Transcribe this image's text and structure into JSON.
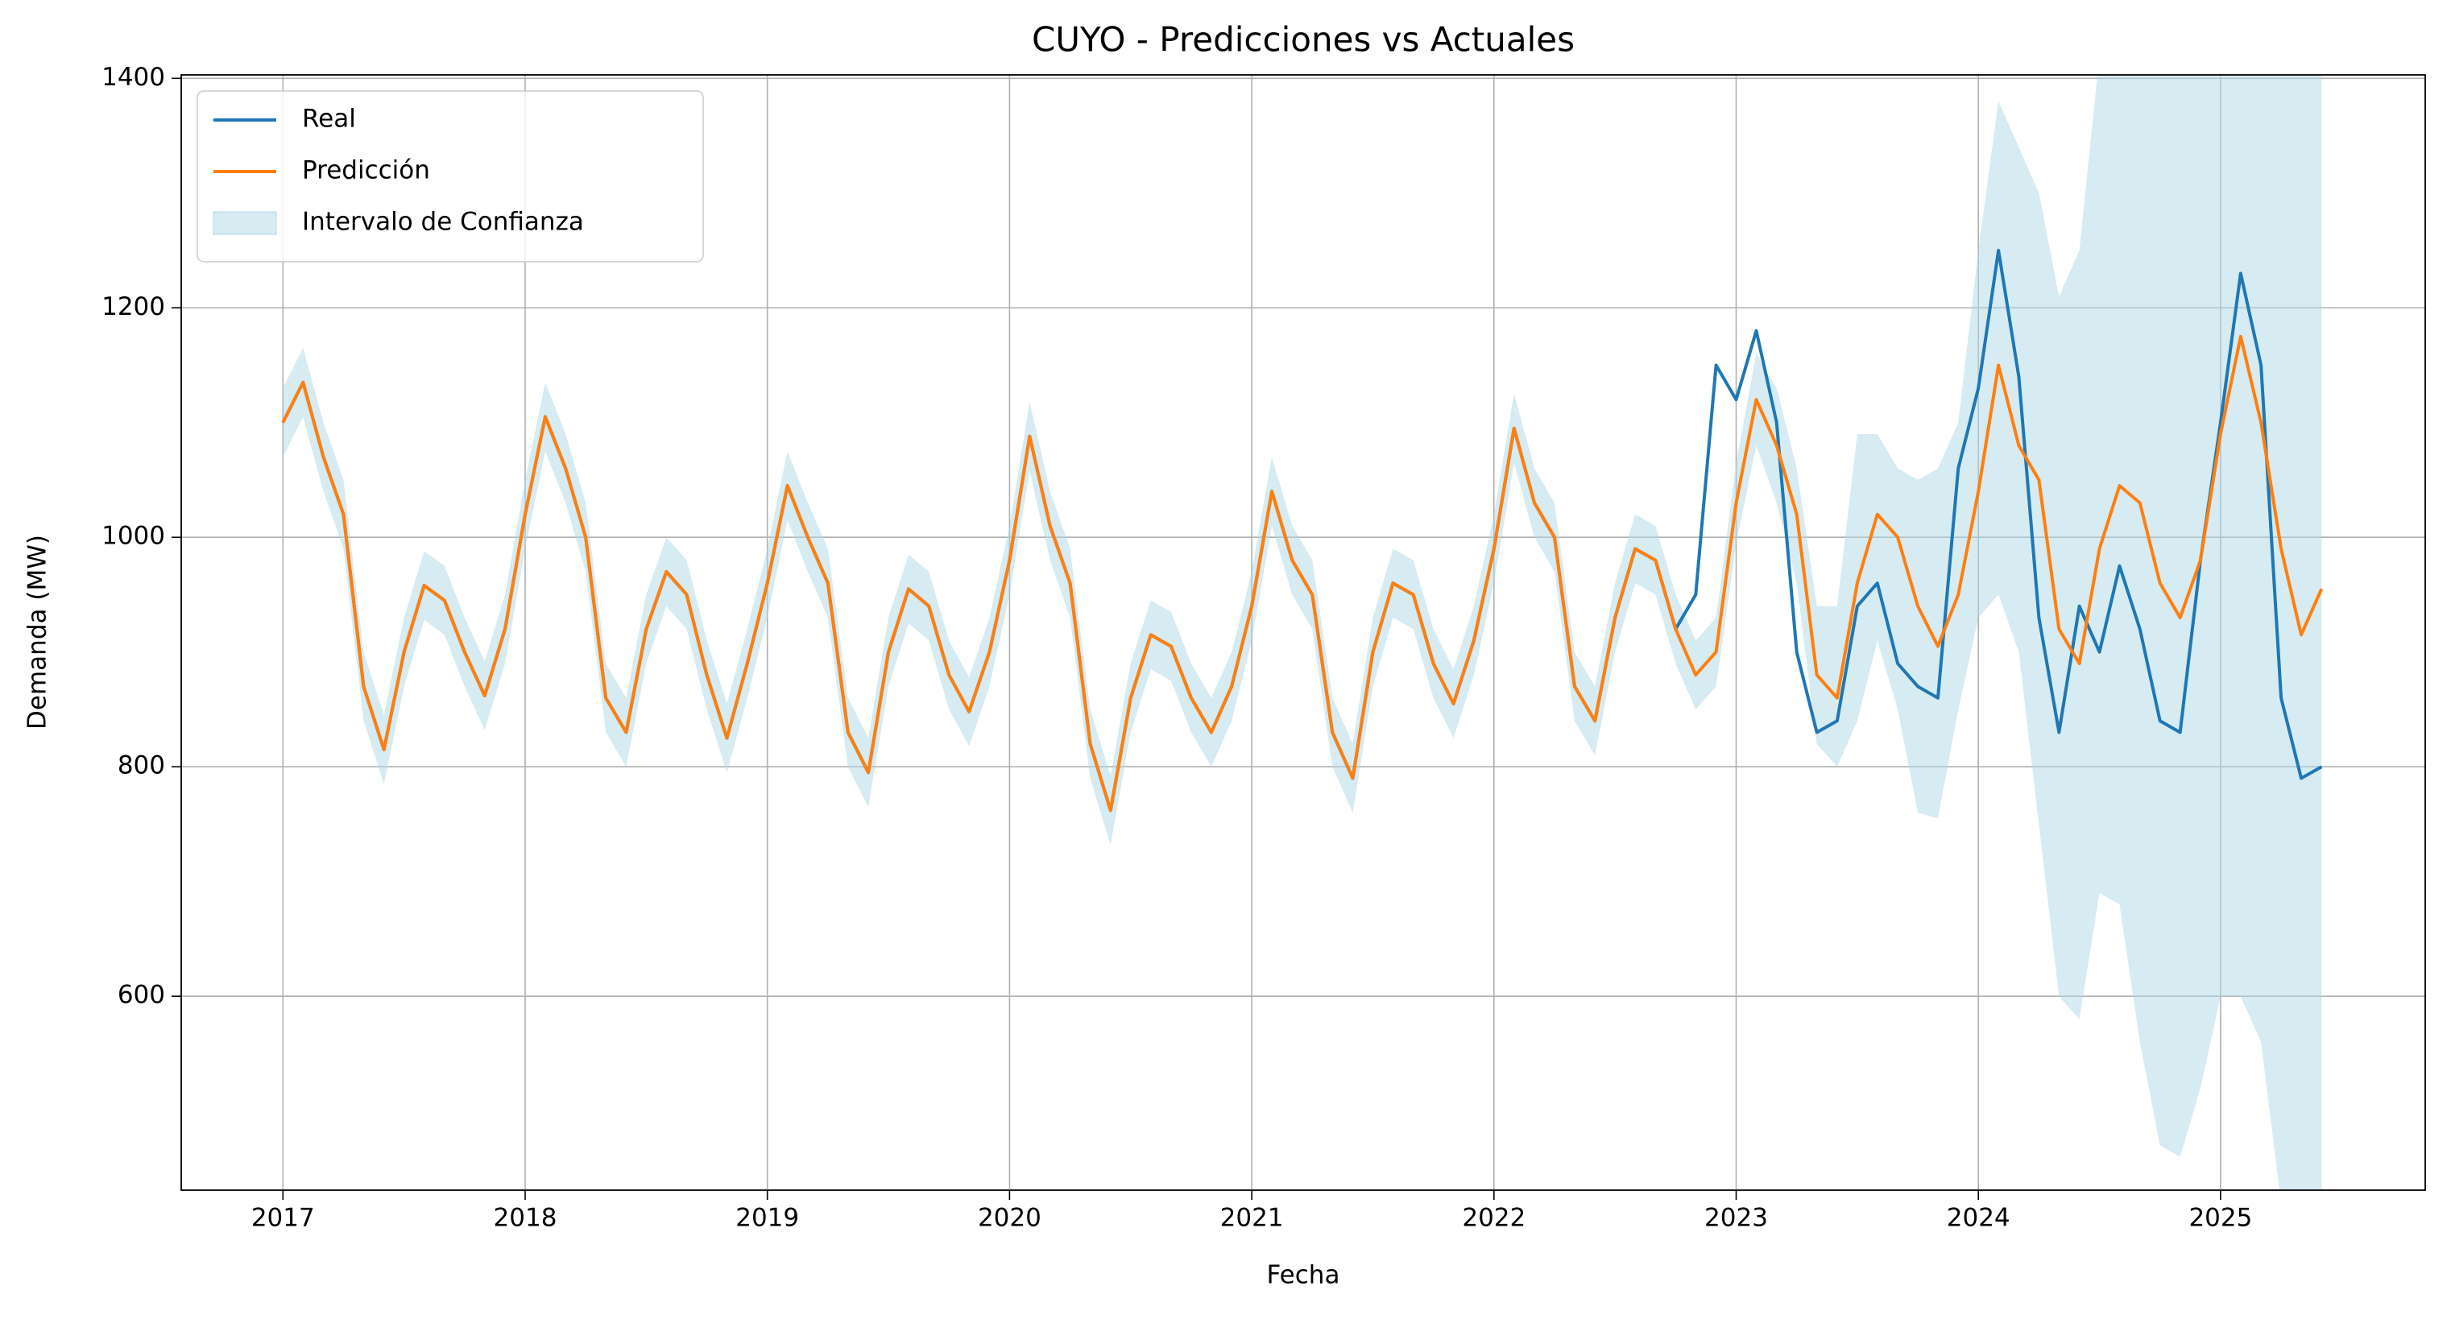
{
  "chart_data": {
    "type": "line",
    "title": "CUYO - Predicciones vs Actuales",
    "xlabel": "Fecha",
    "ylabel": "Demanda (MW)",
    "xlim": [
      2016.58,
      2025.845
    ],
    "ylim": [
      431,
      1403
    ],
    "xticks": [
      2017,
      2018,
      2019,
      2020,
      2021,
      2022,
      2023,
      2024,
      2025
    ],
    "yticks": [
      600,
      800,
      1000,
      1200,
      1400
    ],
    "grid": true,
    "legend": "upper left",
    "x": [
      2017.0,
      2017.083,
      2017.167,
      2017.25,
      2017.333,
      2017.417,
      2017.5,
      2017.583,
      2017.667,
      2017.75,
      2017.833,
      2017.917,
      2018.0,
      2018.083,
      2018.167,
      2018.25,
      2018.333,
      2018.417,
      2018.5,
      2018.583,
      2018.667,
      2018.75,
      2018.833,
      2018.917,
      2019.0,
      2019.083,
      2019.167,
      2019.25,
      2019.333,
      2019.417,
      2019.5,
      2019.583,
      2019.667,
      2019.75,
      2019.833,
      2019.917,
      2020.0,
      2020.083,
      2020.167,
      2020.25,
      2020.333,
      2020.417,
      2020.5,
      2020.583,
      2020.667,
      2020.75,
      2020.833,
      2020.917,
      2021.0,
      2021.083,
      2021.167,
      2021.25,
      2021.333,
      2021.417,
      2021.5,
      2021.583,
      2021.667,
      2021.75,
      2021.833,
      2021.917,
      2022.0,
      2022.083,
      2022.167,
      2022.25,
      2022.333,
      2022.417,
      2022.5,
      2022.583,
      2022.667,
      2022.75,
      2022.833,
      2022.917,
      2023.0,
      2023.083,
      2023.167,
      2023.25,
      2023.333,
      2023.417,
      2023.5,
      2023.583,
      2023.667,
      2023.75,
      2023.833,
      2023.917,
      2024.0,
      2024.083,
      2024.167,
      2024.25,
      2024.333,
      2024.417,
      2024.5,
      2024.583,
      2024.667,
      2024.75,
      2024.833,
      2024.917,
      2025.0,
      2025.083,
      2025.167,
      2025.25,
      2025.333,
      2025.417
    ],
    "band": {
      "name": "Intervalo de Confianza",
      "color": "#add8e6",
      "lower": [
        1070,
        1105,
        1040,
        990,
        840,
        785,
        870,
        928,
        915,
        870,
        832,
        890,
        990,
        1075,
        1030,
        970,
        830,
        800,
        890,
        940,
        920,
        850,
        795,
        860,
        930,
        1015,
        970,
        930,
        800,
        765,
        870,
        925,
        910,
        850,
        818,
        870,
        950,
        1058,
        980,
        930,
        790,
        732,
        830,
        885,
        875,
        830,
        800,
        840,
        910,
        1010,
        950,
        920,
        800,
        760,
        870,
        930,
        920,
        860,
        825,
        880,
        960,
        1065,
        1000,
        970,
        840,
        810,
        900,
        960,
        950,
        890,
        850,
        870,
        995,
        1080,
        1030,
        960,
        820,
        800,
        840,
        910,
        850,
        760,
        755,
        850,
        930,
        950,
        900,
        750,
        600,
        580,
        690,
        680,
        560,
        470,
        460,
        520,
        600,
        600,
        560,
        420,
        350,
        330
      ],
      "upper": [
        1130,
        1165,
        1100,
        1050,
        900,
        845,
        930,
        988,
        975,
        930,
        892,
        950,
        1050,
        1135,
        1090,
        1030,
        890,
        860,
        950,
        1000,
        980,
        910,
        855,
        920,
        990,
        1075,
        1030,
        990,
        860,
        825,
        930,
        985,
        970,
        910,
        878,
        930,
        1010,
        1118,
        1040,
        990,
        850,
        792,
        890,
        945,
        935,
        890,
        860,
        900,
        970,
        1070,
        1010,
        980,
        860,
        820,
        930,
        990,
        980,
        920,
        885,
        940,
        1020,
        1125,
        1060,
        1030,
        900,
        870,
        960,
        1020,
        1010,
        950,
        910,
        930,
        1065,
        1160,
        1130,
        1060,
        940,
        940,
        1090,
        1090,
        1060,
        1050,
        1060,
        1100,
        1250,
        1380,
        1340,
        1300,
        1210,
        1250,
        1420,
        1550,
        1600,
        1650,
        1700,
        1750,
        1800,
        1850,
        1900,
        1950,
        2000,
        2050
      ]
    },
    "series": [
      {
        "name": "Real",
        "color": "#1f77b4",
        "values": [
          1100,
          1135,
          1070,
          1020,
          870,
          815,
          900,
          958,
          945,
          900,
          862,
          920,
          1020,
          1105,
          1060,
          1000,
          860,
          830,
          920,
          970,
          950,
          880,
          825,
          890,
          960,
          1045,
          1000,
          960,
          830,
          795,
          900,
          955,
          940,
          880,
          848,
          900,
          980,
          1088,
          1010,
          960,
          820,
          762,
          860,
          915,
          905,
          860,
          830,
          870,
          940,
          1040,
          980,
          950,
          830,
          790,
          900,
          960,
          950,
          890,
          855,
          910,
          990,
          1095,
          1030,
          1000,
          870,
          840,
          930,
          990,
          980,
          920,
          950,
          1150,
          1120,
          1180,
          1100,
          900,
          830,
          840,
          940,
          960,
          890,
          870,
          860,
          1060,
          1130,
          1250,
          1140,
          930,
          830,
          940,
          900,
          975,
          920,
          840,
          830,
          980,
          1100,
          1230,
          1150,
          860,
          790,
          800
        ]
      },
      {
        "name": "Predicción",
        "color": "#ff7f0e",
        "values": [
          1100,
          1135,
          1070,
          1020,
          870,
          815,
          900,
          958,
          945,
          900,
          862,
          920,
          1020,
          1105,
          1060,
          1000,
          860,
          830,
          920,
          970,
          950,
          880,
          825,
          890,
          960,
          1045,
          1000,
          960,
          830,
          795,
          900,
          955,
          940,
          880,
          848,
          900,
          980,
          1088,
          1010,
          960,
          820,
          762,
          860,
          915,
          905,
          860,
          830,
          870,
          940,
          1040,
          980,
          950,
          830,
          790,
          900,
          960,
          950,
          890,
          855,
          910,
          990,
          1095,
          1030,
          1000,
          870,
          840,
          930,
          990,
          980,
          920,
          880,
          900,
          1030,
          1120,
          1080,
          1020,
          880,
          860,
          960,
          1020,
          1000,
          940,
          905,
          950,
          1040,
          1150,
          1080,
          1050,
          920,
          890,
          990,
          1045,
          1030,
          960,
          930,
          980,
          1090,
          1175,
          1100,
          990,
          915,
          955
        ]
      }
    ]
  }
}
